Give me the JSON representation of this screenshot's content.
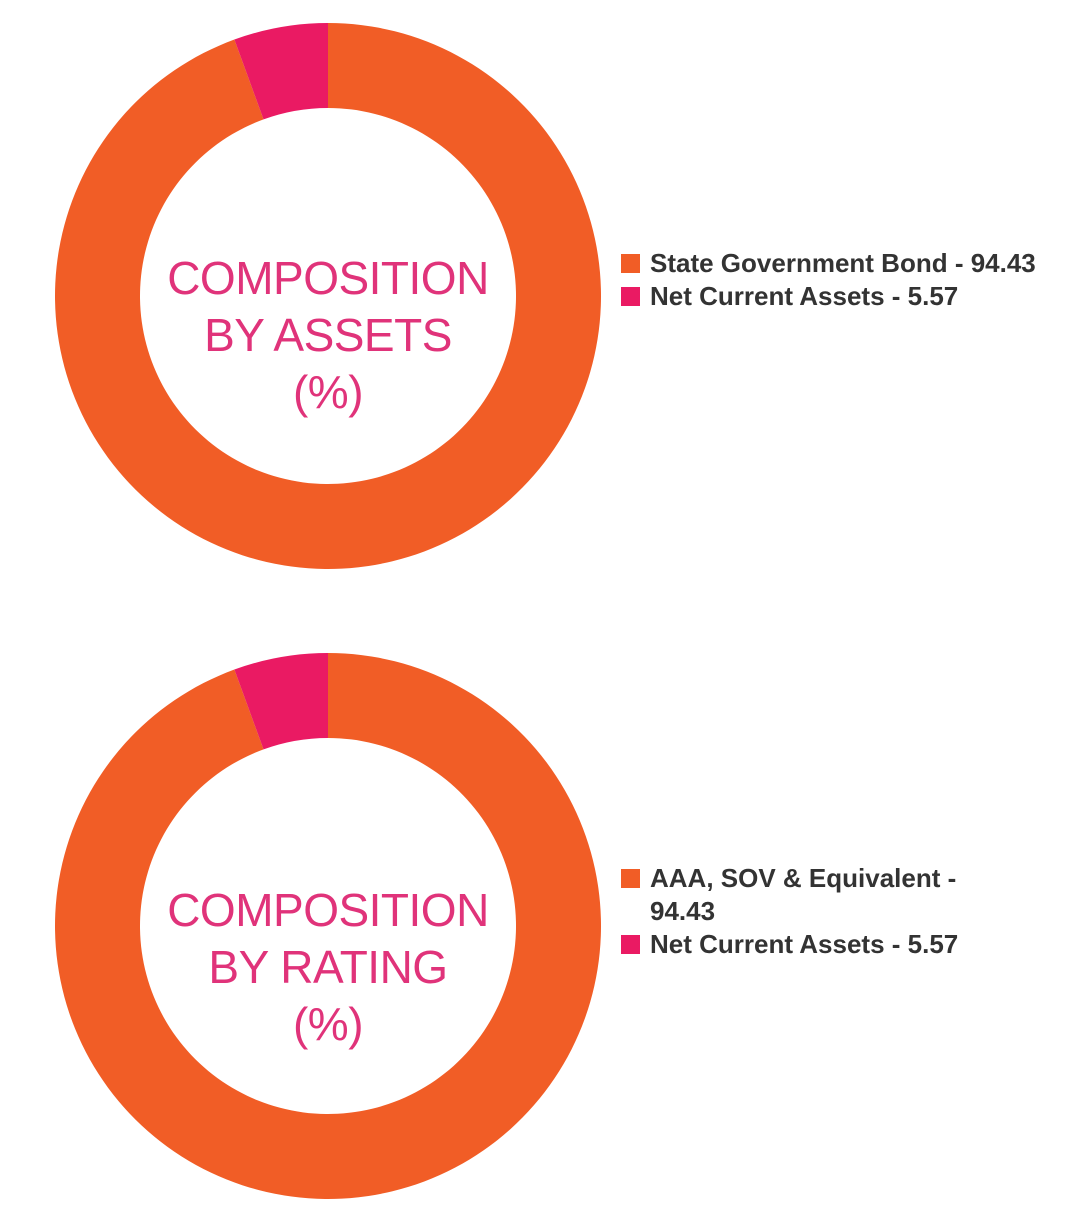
{
  "colors": {
    "primary_slice": "#f15d26",
    "secondary_slice": "#ea1a63",
    "center_text": "#e0337a",
    "legend_text": "#333333"
  },
  "chart_data": [
    {
      "type": "pie",
      "title_lines": [
        "COMPOSITION",
        "BY ASSETS",
        "(%)"
      ],
      "series": [
        {
          "name": "",
          "values": [
            94.43,
            5.57
          ]
        }
      ],
      "categories": [
        "State Government Bond",
        "Net Current Assets"
      ],
      "legend": {
        "placement": "right",
        "entries": [
          "State Government Bond - 94.43",
          "Net Current Assets - 5.57"
        ]
      }
    },
    {
      "type": "pie",
      "title_lines": [
        "COMPOSITION",
        "BY RATING",
        "(%)"
      ],
      "series": [
        {
          "name": "",
          "values": [
            94.43,
            5.57
          ]
        }
      ],
      "categories": [
        "AAA, SOV & Equivalent",
        "Net Current Assets"
      ],
      "legend": {
        "placement": "right",
        "entries": [
          "AAA, SOV & Equivalent - 94.43",
          "Net Current Assets - 5.57"
        ]
      }
    }
  ]
}
